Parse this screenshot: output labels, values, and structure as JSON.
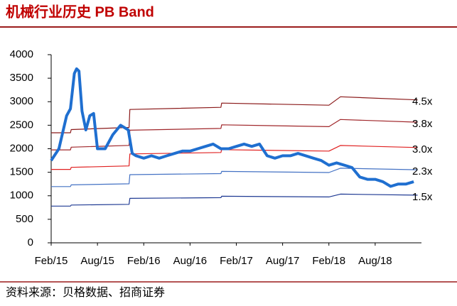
{
  "chart_data": {
    "type": "line",
    "title": "机械行业历史 PB Band",
    "source": "资料来源：贝格数据、招商证券",
    "xlim": [
      0,
      48
    ],
    "ylim": [
      0,
      4000
    ],
    "yticks": [
      0,
      500,
      1000,
      1500,
      2000,
      2500,
      3000,
      3500,
      4000
    ],
    "xticks": [
      {
        "value": 0,
        "label": "Feb/15"
      },
      {
        "value": 6,
        "label": "Aug/15"
      },
      {
        "value": 12,
        "label": "Feb/16"
      },
      {
        "value": 18,
        "label": "Aug/16"
      },
      {
        "value": 24,
        "label": "Feb/17"
      },
      {
        "value": 30,
        "label": "Aug/17"
      },
      {
        "value": 36,
        "label": "Feb/18"
      },
      {
        "value": 42,
        "label": "Aug/18"
      }
    ],
    "series": [
      {
        "color": "#1f6fd0",
        "width": 4,
        "x": [
          0,
          1,
          2,
          2.5,
          3,
          3.3,
          3.6,
          4,
          4.5,
          5,
          5.5,
          6,
          7,
          8,
          9,
          10,
          10.5,
          11,
          12,
          13,
          14,
          15,
          16,
          17,
          18,
          19,
          20,
          21,
          22,
          23,
          24,
          25,
          26,
          27,
          28,
          29,
          30,
          31,
          32,
          33,
          34,
          35,
          36,
          37,
          38,
          39,
          40,
          41,
          42,
          43,
          44,
          45,
          46,
          47
        ],
        "values": [
          1750,
          2000,
          2700,
          2850,
          3600,
          3700,
          3650,
          2800,
          2400,
          2700,
          2750,
          2000,
          2000,
          2300,
          2500,
          2400,
          1900,
          1850,
          1800,
          1850,
          1800,
          1850,
          1900,
          1950,
          1950,
          2000,
          2050,
          2100,
          2000,
          2000,
          2050,
          2100,
          2050,
          2100,
          1850,
          1800,
          1850,
          1850,
          1900,
          1850,
          1800,
          1750,
          1650,
          1700,
          1650,
          1600,
          1400,
          1350,
          1350,
          1300,
          1200,
          1250,
          1250,
          1300
        ]
      },
      {
        "name": "4.5x",
        "color": "#8b1a1a",
        "width": 1.2,
        "x": [
          0,
          2.5,
          2.6,
          10.1,
          10.2,
          22,
          22.1,
          36,
          37.5,
          47.5
        ],
        "values": [
          2340,
          2340,
          2408,
          2453,
          2835,
          2880,
          2970,
          2925,
          3105,
          3038
        ]
      },
      {
        "name": "3.8x",
        "color": "#a0262a",
        "width": 1.2,
        "x": [
          0,
          2.5,
          2.6,
          10.1,
          10.2,
          22,
          22.1,
          36,
          37.5,
          47.5
        ],
        "values": [
          1976,
          1976,
          2033,
          2071,
          2394,
          2432,
          2508,
          2470,
          2622,
          2565
        ]
      },
      {
        "name": "3.0x",
        "color": "#e02020",
        "width": 1.2,
        "x": [
          0,
          2.5,
          2.6,
          10.1,
          10.2,
          22,
          22.1,
          36,
          37.5,
          47.5
        ],
        "values": [
          1560,
          1560,
          1605,
          1635,
          1890,
          1920,
          1980,
          1950,
          2070,
          2025
        ]
      },
      {
        "name": "2.3x",
        "color": "#4472c4",
        "width": 1.2,
        "x": [
          0,
          2.5,
          2.6,
          10.1,
          10.2,
          22,
          22.1,
          36,
          37.5,
          47.5
        ],
        "values": [
          1196,
          1196,
          1231,
          1254,
          1449,
          1472,
          1518,
          1495,
          1587,
          1553
        ]
      },
      {
        "name": "1.5x",
        "color": "#1f3a93",
        "width": 1.2,
        "x": [
          0,
          2.5,
          2.6,
          10.1,
          10.2,
          22,
          22.1,
          36,
          37.5,
          47.5
        ],
        "values": [
          780,
          780,
          803,
          818,
          945,
          960,
          990,
          975,
          1035,
          1013
        ]
      }
    ]
  }
}
